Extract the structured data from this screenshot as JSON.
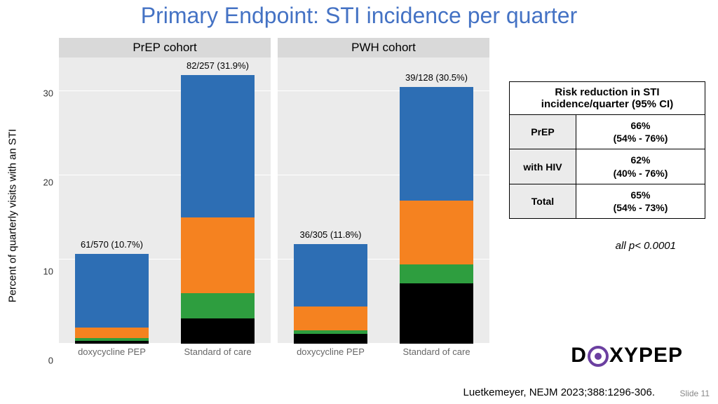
{
  "title": "Primary Endpoint: STI incidence per quarter",
  "ylabel": "Percent of quarterly visits with an STI",
  "ylim_max": 34,
  "yticks": [
    0,
    10,
    20,
    30
  ],
  "xlabels": [
    "doxycycline PEP",
    "Standard of care"
  ],
  "seg_colors": [
    "#000000",
    "#2e9e3f",
    "#f58220",
    "#2d6eb4"
  ],
  "panel_bg": "#ebebeb",
  "grid_color": "#ffffff",
  "panels": [
    {
      "header": "PrEP cohort",
      "bars": [
        {
          "label": "61/570 (10.7%)",
          "total": 10.7,
          "segs": [
            0.3,
            0.4,
            1.2,
            8.8
          ]
        },
        {
          "label": "82/257 (31.9%)",
          "total": 31.9,
          "segs": [
            3.0,
            3.0,
            9.0,
            16.9
          ]
        }
      ]
    },
    {
      "header": "PWH cohort",
      "bars": [
        {
          "label": "36/305 (11.8%)",
          "total": 11.8,
          "segs": [
            1.2,
            0.4,
            2.8,
            7.4
          ]
        },
        {
          "label": "39/128 (30.5%)",
          "total": 30.5,
          "segs": [
            7.2,
            2.2,
            7.6,
            13.5
          ]
        }
      ]
    }
  ],
  "table": {
    "title": "Risk reduction in STI incidence/quarter (95% CI)",
    "rows": [
      {
        "label": "PrEP",
        "value": "66%",
        "ci": "(54% - 76%)"
      },
      {
        "label": "with HIV",
        "value": "62%",
        "ci": "(40% - 76%)"
      },
      {
        "label": "Total",
        "value": "65%",
        "ci": "(54% - 73%)"
      }
    ]
  },
  "pval": "all p< 0.0001",
  "logo_pre": "D",
  "logo_post": "XYPEP",
  "citation": "Luetkemeyer, NEJM 2023;388:1296-306.",
  "slidenum": "Slide 11"
}
